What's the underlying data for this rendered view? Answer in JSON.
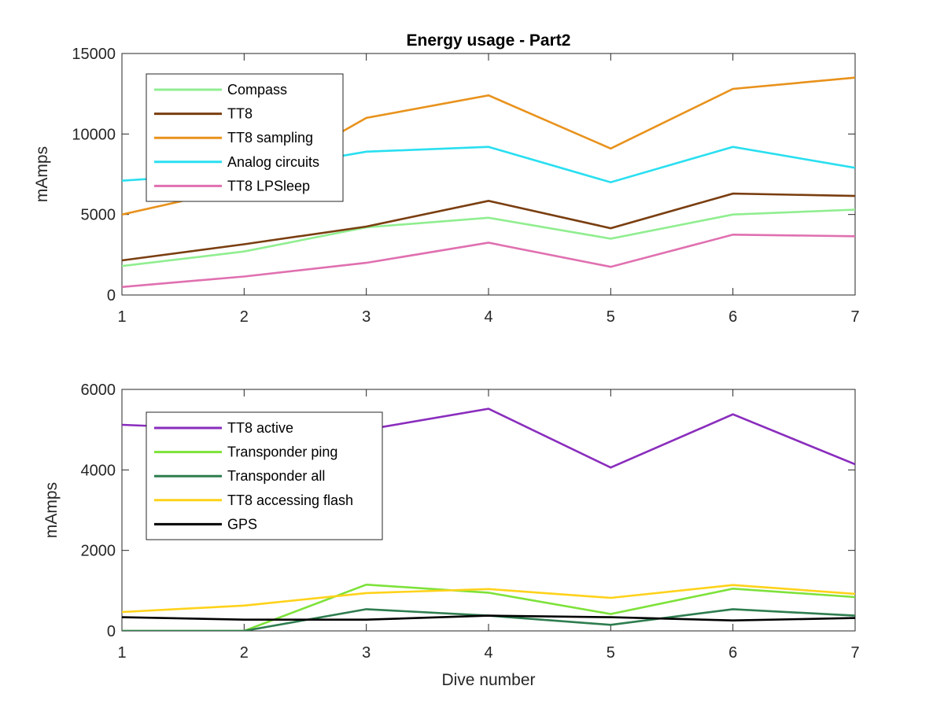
{
  "figure": {
    "title": "Energy usage - Part2"
  },
  "chart_data": [
    {
      "type": "line",
      "title": "Energy usage - Part2",
      "xlabel": "",
      "ylabel": "mAmps",
      "xlim": [
        1,
        7
      ],
      "ylim": [
        0,
        15000
      ],
      "xticks": [
        "1",
        "2",
        "3",
        "4",
        "5",
        "6",
        "7"
      ],
      "yticks": [
        "0",
        "5000",
        "10000",
        "15000"
      ],
      "x": [
        1,
        2,
        3,
        4,
        5,
        6,
        7
      ],
      "grid": false,
      "legend_position": "top-left",
      "series": [
        {
          "name": "Compass",
          "color": "#90ee90",
          "values": [
            1800,
            2700,
            4200,
            4800,
            3500,
            5000,
            5300
          ]
        },
        {
          "name": "TT8",
          "color": "#7a3e10",
          "values": [
            2150,
            3150,
            4250,
            5850,
            4150,
            6300,
            6150
          ]
        },
        {
          "name": "TT8 sampling",
          "color": "#e8921c",
          "values": [
            5000,
            6700,
            11000,
            12400,
            9100,
            12800,
            13500
          ]
        },
        {
          "name": "Analog circuits",
          "color": "#29dff0",
          "values": [
            7100,
            7600,
            8900,
            9200,
            7000,
            9200,
            7900
          ]
        },
        {
          "name": "TT8 LPSleep",
          "color": "#e070b0",
          "values": [
            500,
            1150,
            2000,
            3250,
            1750,
            3750,
            3650
          ]
        }
      ]
    },
    {
      "type": "line",
      "title": "",
      "xlabel": "Dive number",
      "ylabel": "mAmps",
      "xlim": [
        1,
        7
      ],
      "ylim": [
        0,
        6000
      ],
      "xticks": [
        "1",
        "2",
        "3",
        "4",
        "5",
        "6",
        "7"
      ],
      "yticks": [
        "0",
        "2000",
        "4000",
        "6000"
      ],
      "x": [
        1,
        2,
        3,
        4,
        5,
        6,
        7
      ],
      "grid": false,
      "legend_position": "top-left",
      "series": [
        {
          "name": "TT8 active",
          "color": "#8a2dbd",
          "values": [
            5120,
            5000,
            5000,
            5520,
            4060,
            5380,
            4140
          ]
        },
        {
          "name": "Transponder ping",
          "color": "#7de23a",
          "values": [
            0,
            0,
            1150,
            950,
            420,
            1050,
            840
          ]
        },
        {
          "name": "Transponder all",
          "color": "#2e7d4f",
          "values": [
            0,
            0,
            540,
            380,
            150,
            540,
            380
          ]
        },
        {
          "name": "TT8 accessing flash",
          "color": "#ffd21a",
          "values": [
            470,
            630,
            940,
            1040,
            820,
            1140,
            920
          ]
        },
        {
          "name": "GPS",
          "color": "#000000",
          "values": [
            340,
            280,
            280,
            380,
            340,
            260,
            320
          ]
        }
      ]
    }
  ]
}
